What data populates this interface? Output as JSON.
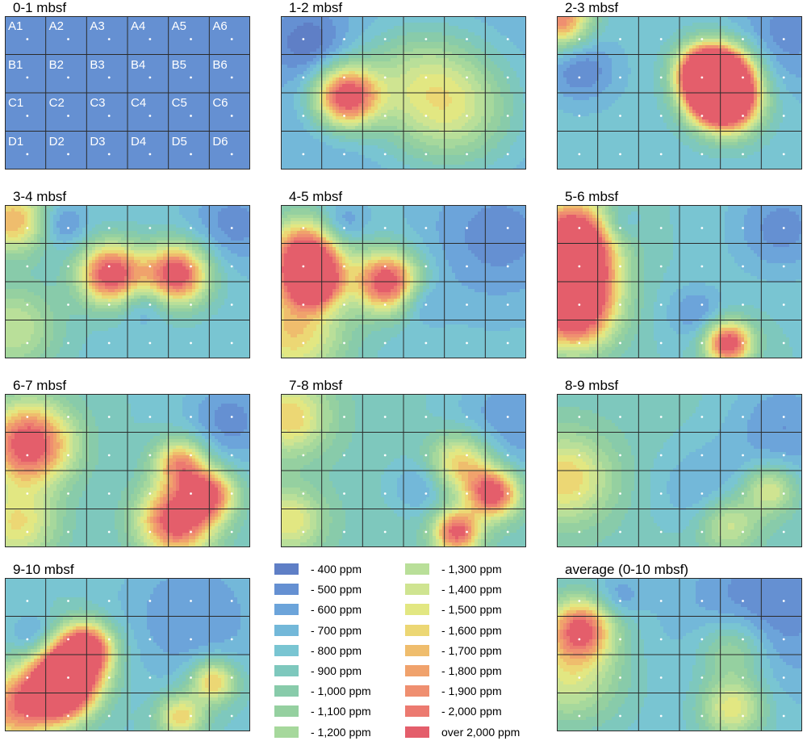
{
  "chart_data": {
    "type": "heatmap",
    "grid": {
      "rows": [
        "A",
        "B",
        "C",
        "D"
      ],
      "cols": [
        "1",
        "2",
        "3",
        "4",
        "5",
        "6"
      ],
      "cell_labels": [
        [
          "A1",
          "A2",
          "A3",
          "A4",
          "A5",
          "A6"
        ],
        [
          "B1",
          "B2",
          "B3",
          "B4",
          "B5",
          "B6"
        ],
        [
          "C1",
          "C2",
          "C3",
          "C4",
          "C5",
          "C6"
        ],
        [
          "D1",
          "D2",
          "D3",
          "D4",
          "D5",
          "D6"
        ]
      ]
    },
    "panels": [
      {
        "title": "0-1 mbsf",
        "base": 400,
        "hotspots": []
      },
      {
        "title": "1-2 mbsf",
        "base": 600,
        "hotspots": [
          {
            "x": 1.6,
            "y": 2.1,
            "r": 0.55,
            "v": 2100
          },
          {
            "x": 4.2,
            "y": 2.4,
            "r": 1.1,
            "v": 1300
          },
          {
            "x": 3.2,
            "y": 1.6,
            "r": 1.0,
            "v": 1000
          },
          {
            "x": 0.7,
            "y": 0.7,
            "r": 0.6,
            "v": 300
          }
        ]
      },
      {
        "title": "2-3 mbsf",
        "base": 750,
        "hotspots": [
          {
            "x": 3.6,
            "y": 1.4,
            "r": 0.45,
            "v": 2100
          },
          {
            "x": 4.1,
            "y": 1.5,
            "r": 0.55,
            "v": 2200
          },
          {
            "x": 4.2,
            "y": 2.3,
            "r": 0.55,
            "v": 2200
          },
          {
            "x": 3.8,
            "y": 2.0,
            "r": 0.5,
            "v": 2100
          },
          {
            "x": 0.1,
            "y": 0.1,
            "r": 0.5,
            "v": 1900
          },
          {
            "x": 5.6,
            "y": 0.5,
            "r": 1.0,
            "v": 450
          },
          {
            "x": 0.6,
            "y": 1.4,
            "r": 0.6,
            "v": 400
          }
        ]
      },
      {
        "title": "3-4 mbsf",
        "base": 750,
        "hotspots": [
          {
            "x": 2.6,
            "y": 1.8,
            "r": 0.55,
            "v": 2200
          },
          {
            "x": 4.2,
            "y": 1.8,
            "r": 0.55,
            "v": 2200
          },
          {
            "x": 0.2,
            "y": 0.4,
            "r": 0.6,
            "v": 1700
          },
          {
            "x": 1.4,
            "y": 0.5,
            "r": 0.4,
            "v": 400
          },
          {
            "x": 5.6,
            "y": 0.5,
            "r": 0.8,
            "v": 450
          },
          {
            "x": 3.4,
            "y": 2.6,
            "r": 0.4,
            "v": 500
          },
          {
            "x": 0.2,
            "y": 3.2,
            "r": 0.8,
            "v": 1300
          }
        ]
      },
      {
        "title": "4-5 mbsf",
        "base": 750,
        "hotspots": [
          {
            "x": 0.6,
            "y": 1.3,
            "r": 0.65,
            "v": 2200
          },
          {
            "x": 0.8,
            "y": 2.0,
            "r": 0.45,
            "v": 2100
          },
          {
            "x": 2.6,
            "y": 2.0,
            "r": 0.55,
            "v": 2200
          },
          {
            "x": 0.3,
            "y": 3.3,
            "r": 0.9,
            "v": 1600
          },
          {
            "x": 1.5,
            "y": 0.5,
            "r": 0.4,
            "v": 400
          },
          {
            "x": 5.3,
            "y": 0.8,
            "r": 1.3,
            "v": 450
          },
          {
            "x": 3.4,
            "y": 2.5,
            "r": 0.4,
            "v": 500
          }
        ]
      },
      {
        "title": "5-6 mbsf",
        "base": 800,
        "hotspots": [
          {
            "x": 0.4,
            "y": 0.8,
            "r": 0.7,
            "v": 2200
          },
          {
            "x": 0.4,
            "y": 1.8,
            "r": 0.7,
            "v": 2200
          },
          {
            "x": 0.4,
            "y": 2.8,
            "r": 0.7,
            "v": 2200
          },
          {
            "x": 4.2,
            "y": 3.6,
            "r": 0.4,
            "v": 2200
          },
          {
            "x": 1.5,
            "y": 0.5,
            "r": 0.35,
            "v": 500
          },
          {
            "x": 5.5,
            "y": 0.6,
            "r": 0.9,
            "v": 450
          },
          {
            "x": 3.4,
            "y": 2.8,
            "r": 0.5,
            "v": 500
          }
        ]
      },
      {
        "title": "6-7 mbsf",
        "base": 800,
        "hotspots": [
          {
            "x": 0.6,
            "y": 1.3,
            "r": 0.75,
            "v": 2200
          },
          {
            "x": 4.2,
            "y": 3.3,
            "r": 0.65,
            "v": 2200
          },
          {
            "x": 5.0,
            "y": 2.6,
            "r": 0.45,
            "v": 1900
          },
          {
            "x": 4.3,
            "y": 1.8,
            "r": 0.45,
            "v": 1800
          },
          {
            "x": 5.5,
            "y": 0.7,
            "r": 0.8,
            "v": 450
          },
          {
            "x": 0.3,
            "y": 3.4,
            "r": 0.7,
            "v": 1500
          }
        ]
      },
      {
        "title": "7-8 mbsf",
        "base": 850,
        "hotspots": [
          {
            "x": 5.2,
            "y": 2.6,
            "r": 0.45,
            "v": 2200
          },
          {
            "x": 4.3,
            "y": 3.6,
            "r": 0.4,
            "v": 2100
          },
          {
            "x": 4.4,
            "y": 1.8,
            "r": 0.55,
            "v": 1700
          },
          {
            "x": 0.2,
            "y": 0.6,
            "r": 0.7,
            "v": 1600
          },
          {
            "x": 0.2,
            "y": 3.3,
            "r": 0.6,
            "v": 1500
          },
          {
            "x": 5.6,
            "y": 0.8,
            "r": 1.1,
            "v": 500
          },
          {
            "x": 3.4,
            "y": 2.4,
            "r": 0.5,
            "v": 550
          }
        ]
      },
      {
        "title": "8-9 mbsf",
        "base": 850,
        "hotspots": [
          {
            "x": 0.2,
            "y": 2.2,
            "r": 0.8,
            "v": 1600
          },
          {
            "x": 5.2,
            "y": 2.5,
            "r": 0.45,
            "v": 1500
          },
          {
            "x": 4.2,
            "y": 3.4,
            "r": 0.5,
            "v": 1400
          },
          {
            "x": 5.6,
            "y": 0.9,
            "r": 1.1,
            "v": 500
          },
          {
            "x": 3.5,
            "y": 2.5,
            "r": 0.8,
            "v": 600
          }
        ]
      },
      {
        "title": "9-10 mbsf",
        "base": 800,
        "hotspots": [
          {
            "x": 1.6,
            "y": 2.4,
            "r": 0.6,
            "v": 2200
          },
          {
            "x": 1.3,
            "y": 3.0,
            "r": 0.55,
            "v": 2200
          },
          {
            "x": 2.0,
            "y": 1.8,
            "r": 0.45,
            "v": 2000
          },
          {
            "x": 0.2,
            "y": 3.4,
            "r": 0.7,
            "v": 1800
          },
          {
            "x": 5.1,
            "y": 2.7,
            "r": 0.4,
            "v": 1700
          },
          {
            "x": 4.3,
            "y": 3.6,
            "r": 0.4,
            "v": 1600
          },
          {
            "x": 4.6,
            "y": 1.0,
            "r": 1.3,
            "v": 500
          },
          {
            "x": 0.7,
            "y": 1.5,
            "r": 0.4,
            "v": 500
          }
        ]
      },
      {
        "title": "average (0-10 mbsf)",
        "base": 750,
        "hotspots": [
          {
            "x": 0.6,
            "y": 1.3,
            "r": 0.55,
            "v": 1900
          },
          {
            "x": 0.3,
            "y": 2.5,
            "r": 0.9,
            "v": 1400
          },
          {
            "x": 4.3,
            "y": 3.4,
            "r": 0.55,
            "v": 1500
          },
          {
            "x": 4.3,
            "y": 1.9,
            "r": 0.6,
            "v": 1250
          },
          {
            "x": 5.1,
            "y": 0.8,
            "r": 1.4,
            "v": 400
          },
          {
            "x": 1.5,
            "y": 0.5,
            "r": 0.4,
            "v": 500
          }
        ]
      }
    ],
    "legend": [
      {
        "label": "- 400 ppm",
        "color": "#5f7fc6"
      },
      {
        "label": "- 500 ppm",
        "color": "#6590d2"
      },
      {
        "label": "- 600 ppm",
        "color": "#6ca4da"
      },
      {
        "label": "- 700 ppm",
        "color": "#73b8d9"
      },
      {
        "label": "- 800 ppm",
        "color": "#79c5d2"
      },
      {
        "label": "- 900 ppm",
        "color": "#7ec8bd"
      },
      {
        "label": "- 1,000 ppm",
        "color": "#88cbaa"
      },
      {
        "label": "- 1,100 ppm",
        "color": "#95d0a0"
      },
      {
        "label": "- 1,200 ppm",
        "color": "#a6d89c"
      },
      {
        "label": "- 1,300 ppm",
        "color": "#b9df99"
      },
      {
        "label": "- 1,400 ppm",
        "color": "#cfe491"
      },
      {
        "label": "- 1,500 ppm",
        "color": "#e2e782"
      },
      {
        "label": "- 1,600 ppm",
        "color": "#ecd774"
      },
      {
        "label": "- 1,700 ppm",
        "color": "#efbd6d"
      },
      {
        "label": "- 1,800 ppm",
        "color": "#f0a26c"
      },
      {
        "label": "- 1,900 ppm",
        "color": "#ef8f70"
      },
      {
        "label": "- 2,000 ppm",
        "color": "#ec7a70"
      },
      {
        "label": "over 2,000 ppm",
        "color": "#e45e6b"
      }
    ]
  }
}
